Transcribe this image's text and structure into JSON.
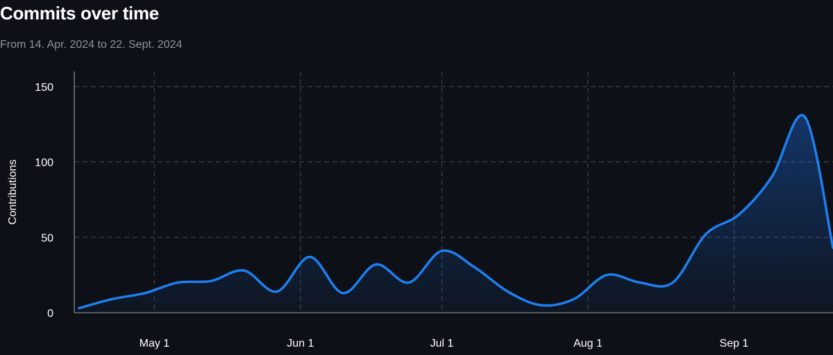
{
  "header": {
    "title": "Commits over time",
    "subtitle": "From 14. Apr. 2024 to 22. Sept. 2024"
  },
  "colors": {
    "background": "#0d1117",
    "line": "#1f7ff0",
    "grid": "#3d434c",
    "subtitle": "#8b949e"
  },
  "chart_data": {
    "type": "area",
    "title": "Commits over time",
    "subtitle": "From 14. Apr. 2024 to 22. Sept. 2024",
    "xlabel": "",
    "ylabel": "Contributions",
    "xlim": [
      "2024-04-14",
      "2024-09-22"
    ],
    "ylim": [
      0,
      160
    ],
    "y_ticks": [
      0,
      50,
      100,
      150
    ],
    "x_ticks": [
      {
        "date": "2024-05-01",
        "label": "May 1"
      },
      {
        "date": "2024-06-01",
        "label": "Jun 1"
      },
      {
        "date": "2024-07-01",
        "label": "Jul 1"
      },
      {
        "date": "2024-08-01",
        "label": "Aug 1"
      },
      {
        "date": "2024-09-01",
        "label": "Sep 1"
      }
    ],
    "grid": true,
    "series": [
      {
        "name": "",
        "x": [
          "2024-04-15",
          "2024-04-22",
          "2024-04-29",
          "2024-05-06",
          "2024-05-13",
          "2024-05-20",
          "2024-05-27",
          "2024-06-03",
          "2024-06-10",
          "2024-06-17",
          "2024-06-24",
          "2024-07-01",
          "2024-07-08",
          "2024-07-15",
          "2024-07-22",
          "2024-07-29",
          "2024-08-05",
          "2024-08-12",
          "2024-08-19",
          "2024-08-26",
          "2024-09-02",
          "2024-09-09",
          "2024-09-16",
          "2024-09-22"
        ],
        "values": [
          3,
          9,
          13,
          20,
          21,
          28,
          14,
          37,
          13,
          32,
          20,
          41,
          30,
          14,
          5,
          9,
          25,
          20,
          20,
          52,
          65,
          90,
          130,
          43
        ]
      }
    ]
  }
}
